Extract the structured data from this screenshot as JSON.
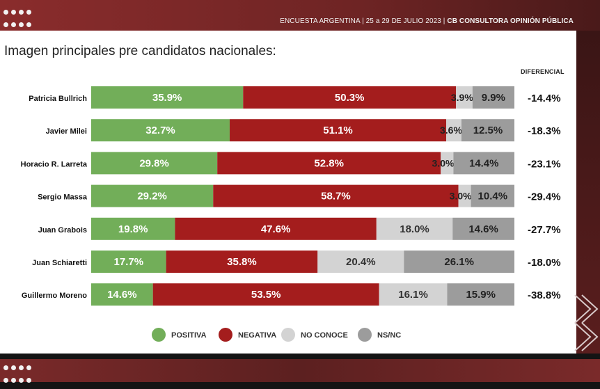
{
  "header": {
    "text_plain": "ENCUESTA ARGENTINA | 25 a 29 DE JULIO 2023 | ",
    "text_bold": "CB CONSULTORA OPINIÓN PÚBLICA"
  },
  "chart_data": {
    "type": "bar",
    "orientation": "horizontal-stacked-100",
    "title": "Imagen principales pre candidatos nacionales:",
    "diff_label": "DIFERENCIAL",
    "categories": [
      "Patricia Bullrich",
      "Javier Milei",
      "Horacio R. Larreta",
      "Sergio Massa",
      "Juan Grabois",
      "Juan Schiaretti",
      "Guillermo Moreno"
    ],
    "series": [
      {
        "name": "POSITIVA",
        "color": "#72ae59",
        "values": [
          35.9,
          32.7,
          29.8,
          29.2,
          19.8,
          17.7,
          14.6
        ]
      },
      {
        "name": "NEGATIVA",
        "color": "#a41d1d",
        "values": [
          50.3,
          51.1,
          52.8,
          58.7,
          47.6,
          35.8,
          53.5
        ]
      },
      {
        "name": "NO CONOCE",
        "color": "#d3d3d3",
        "values": [
          3.9,
          3.6,
          3.0,
          3.0,
          18.0,
          20.4,
          16.1
        ]
      },
      {
        "name": "NS/NC",
        "color": "#9c9c9c",
        "values": [
          9.9,
          12.5,
          14.4,
          10.4,
          14.6,
          26.1,
          15.9
        ]
      }
    ],
    "differential": [
      "-14.4%",
      "-18.3%",
      "-23.1%",
      "-29.4%",
      "-27.7%",
      "-18.0%",
      "-38.8%"
    ],
    "legend": "bottom",
    "legend_colors": [
      "#72ae59",
      "#a41d1d",
      "#d3d3d3",
      "#9c9c9c"
    ]
  }
}
